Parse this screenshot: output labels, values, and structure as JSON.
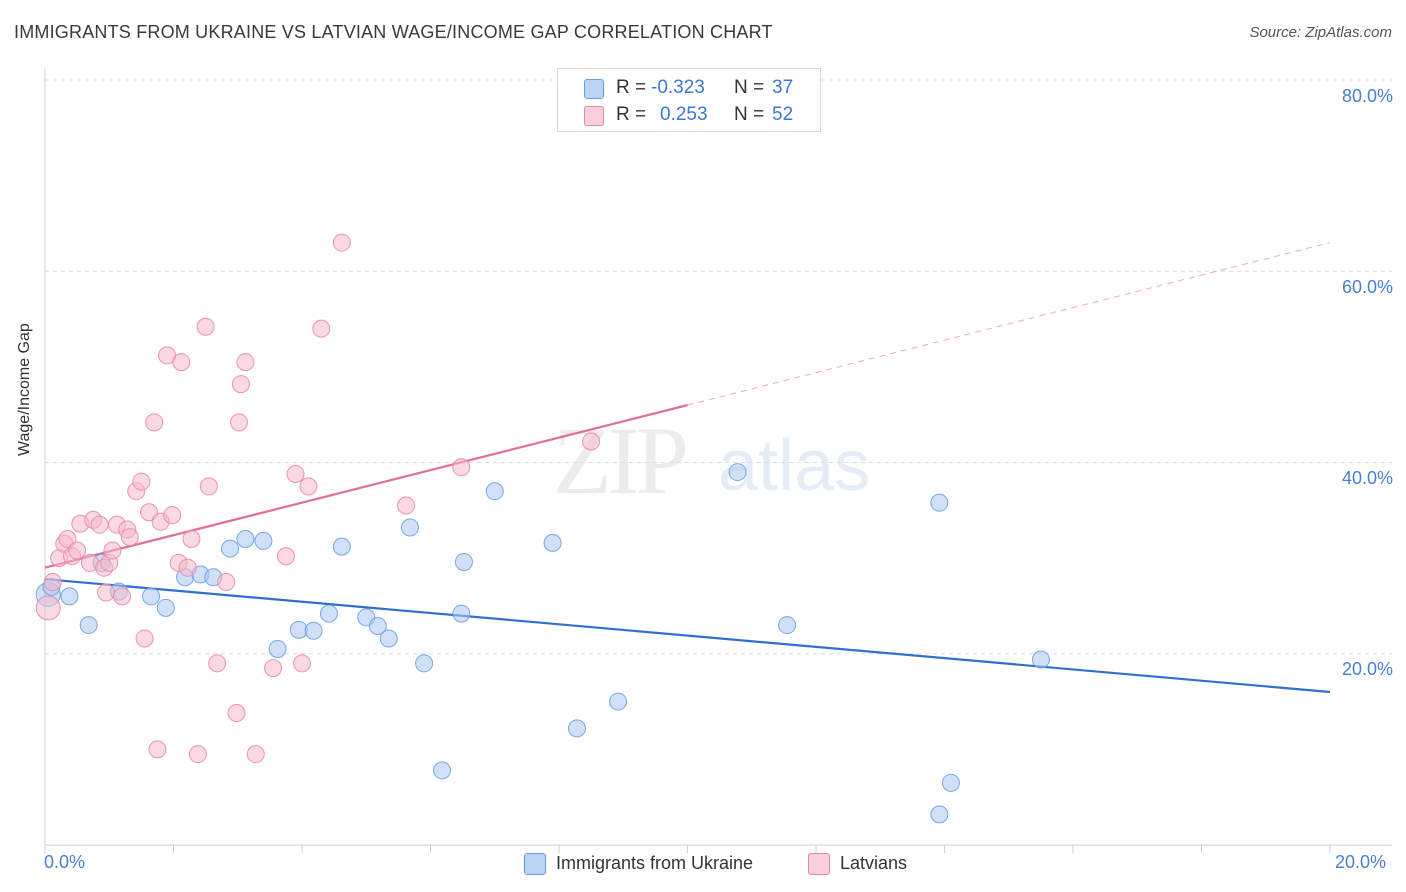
{
  "header": {
    "title": "IMMIGRANTS FROM UKRAINE VS LATVIAN WAGE/INCOME GAP CORRELATION CHART",
    "source": "Source: ZipAtlas.com"
  },
  "watermark": {
    "zip": "ZIP",
    "atlas": "atlas"
  },
  "legend": {
    "r_label": "R =",
    "n_label": "N =",
    "rows": [
      {
        "r": "-0.323",
        "n": "37",
        "color": "#a9c8f0"
      },
      {
        "r": "0.253",
        "n": "52",
        "color": "#f6b9cc"
      }
    ]
  },
  "bottom_legend": [
    {
      "label": "Immigrants from Ukraine",
      "color": "#a9c8f0"
    },
    {
      "label": "Latvians",
      "color": "#f6b9cc"
    }
  ],
  "chart_data": {
    "type": "scatter",
    "title": "IMMIGRANTS FROM UKRAINE VS LATVIAN WAGE/INCOME GAP CORRELATION CHART",
    "xlabel": "",
    "ylabel": "Wage/Income Gap",
    "xlim": [
      0,
      20
    ],
    "ylim": [
      0,
      80
    ],
    "x_ticks": [
      "0.0%",
      "20.0%"
    ],
    "y_ticks": [
      "20.0%",
      "40.0%",
      "60.0%",
      "80.0%"
    ],
    "grid": true,
    "legend_position": "top-center",
    "series": [
      {
        "name": "Immigrants from Ukraine",
        "color": "#a9c8f0",
        "stroke": "#6a9fe0",
        "trend_color": "#2f6fd0",
        "r": -0.323,
        "n": 37,
        "trend": {
          "x": [
            0,
            20
          ],
          "y": [
            27.8,
            16.0
          ],
          "dashed_from": null
        },
        "points": [
          {
            "x": 0.05,
            "y": 26.2
          },
          {
            "x": 0.1,
            "y": 27.0
          },
          {
            "x": 0.38,
            "y": 26.0
          },
          {
            "x": 0.68,
            "y": 23.0
          },
          {
            "x": 0.88,
            "y": 29.5
          },
          {
            "x": 1.15,
            "y": 26.5
          },
          {
            "x": 1.65,
            "y": 26.0
          },
          {
            "x": 1.88,
            "y": 24.8
          },
          {
            "x": 2.18,
            "y": 28.0
          },
          {
            "x": 2.42,
            "y": 28.3
          },
          {
            "x": 2.62,
            "y": 28.0
          },
          {
            "x": 2.88,
            "y": 31.0
          },
          {
            "x": 3.12,
            "y": 32.0
          },
          {
            "x": 3.4,
            "y": 31.8
          },
          {
            "x": 3.62,
            "y": 20.5
          },
          {
            "x": 3.95,
            "y": 22.5
          },
          {
            "x": 4.18,
            "y": 22.4
          },
          {
            "x": 4.42,
            "y": 24.2
          },
          {
            "x": 4.62,
            "y": 31.2
          },
          {
            "x": 5.0,
            "y": 23.8
          },
          {
            "x": 5.18,
            "y": 22.9
          },
          {
            "x": 5.35,
            "y": 21.6
          },
          {
            "x": 5.68,
            "y": 33.2
          },
          {
            "x": 5.9,
            "y": 19.0
          },
          {
            "x": 6.18,
            "y": 7.8
          },
          {
            "x": 6.48,
            "y": 24.2
          },
          {
            "x": 6.52,
            "y": 29.6
          },
          {
            "x": 7.0,
            "y": 37.0
          },
          {
            "x": 7.9,
            "y": 31.6
          },
          {
            "x": 8.28,
            "y": 12.2
          },
          {
            "x": 8.92,
            "y": 15.0
          },
          {
            "x": 10.78,
            "y": 39.0
          },
          {
            "x": 11.55,
            "y": 23.0
          },
          {
            "x": 13.92,
            "y": 3.2
          },
          {
            "x": 13.92,
            "y": 35.8
          },
          {
            "x": 14.1,
            "y": 6.5
          },
          {
            "x": 15.5,
            "y": 19.4
          }
        ]
      },
      {
        "name": "Latvians",
        "color": "#f6b9cc",
        "stroke": "#e888a8",
        "trend_color": "#e06f96",
        "r": 0.253,
        "n": 52,
        "trend": {
          "x": [
            0,
            10
          ],
          "y": [
            29.0,
            46.0
          ],
          "dashed_to_x": 20,
          "dashed_to_y": 63.0
        },
        "points": [
          {
            "x": 0.05,
            "y": 24.8
          },
          {
            "x": 0.12,
            "y": 27.5
          },
          {
            "x": 0.22,
            "y": 30.0
          },
          {
            "x": 0.3,
            "y": 31.5
          },
          {
            "x": 0.35,
            "y": 32.0
          },
          {
            "x": 0.42,
            "y": 30.2
          },
          {
            "x": 0.5,
            "y": 30.8
          },
          {
            "x": 0.55,
            "y": 33.6
          },
          {
            "x": 0.7,
            "y": 29.5
          },
          {
            "x": 0.75,
            "y": 34.0
          },
          {
            "x": 0.85,
            "y": 33.5
          },
          {
            "x": 0.92,
            "y": 29.0
          },
          {
            "x": 0.95,
            "y": 26.4
          },
          {
            "x": 1.0,
            "y": 29.5
          },
          {
            "x": 1.05,
            "y": 30.8
          },
          {
            "x": 1.12,
            "y": 33.5
          },
          {
            "x": 1.2,
            "y": 26.0
          },
          {
            "x": 1.28,
            "y": 33.0
          },
          {
            "x": 1.32,
            "y": 32.2
          },
          {
            "x": 1.42,
            "y": 37.0
          },
          {
            "x": 1.5,
            "y": 38.0
          },
          {
            "x": 1.55,
            "y": 21.6
          },
          {
            "x": 1.62,
            "y": 34.8
          },
          {
            "x": 1.7,
            "y": 44.2
          },
          {
            "x": 1.75,
            "y": 10.0
          },
          {
            "x": 1.8,
            "y": 33.8
          },
          {
            "x": 1.9,
            "y": 51.2
          },
          {
            "x": 1.98,
            "y": 34.5
          },
          {
            "x": 2.08,
            "y": 29.5
          },
          {
            "x": 2.12,
            "y": 50.5
          },
          {
            "x": 2.22,
            "y": 29.0
          },
          {
            "x": 2.28,
            "y": 32.0
          },
          {
            "x": 2.38,
            "y": 9.5
          },
          {
            "x": 2.5,
            "y": 54.2
          },
          {
            "x": 2.55,
            "y": 37.5
          },
          {
            "x": 2.68,
            "y": 19.0
          },
          {
            "x": 2.82,
            "y": 27.5
          },
          {
            "x": 2.98,
            "y": 13.8
          },
          {
            "x": 3.02,
            "y": 44.2
          },
          {
            "x": 3.05,
            "y": 48.2
          },
          {
            "x": 3.12,
            "y": 50.5
          },
          {
            "x": 3.28,
            "y": 9.5
          },
          {
            "x": 3.55,
            "y": 18.5
          },
          {
            "x": 3.75,
            "y": 30.2
          },
          {
            "x": 3.9,
            "y": 38.8
          },
          {
            "x": 4.0,
            "y": 19.0
          },
          {
            "x": 4.1,
            "y": 37.5
          },
          {
            "x": 4.3,
            "y": 54.0
          },
          {
            "x": 4.62,
            "y": 63.0
          },
          {
            "x": 5.62,
            "y": 35.5
          },
          {
            "x": 6.48,
            "y": 39.5
          },
          {
            "x": 8.5,
            "y": 42.2
          }
        ]
      }
    ]
  }
}
